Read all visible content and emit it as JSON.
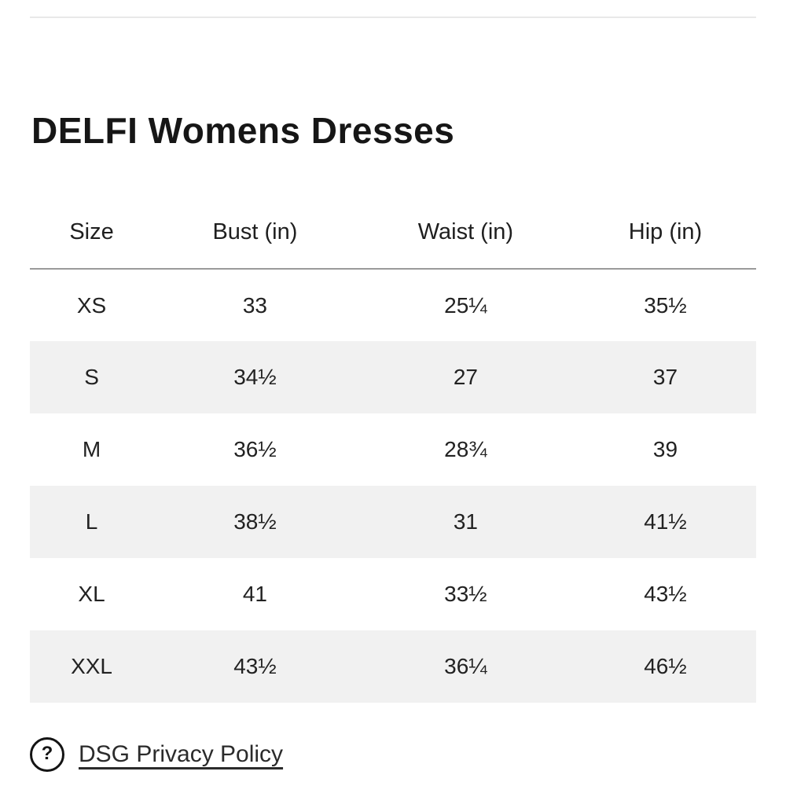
{
  "title": "DELFI Womens Dresses",
  "size_chart": {
    "columns": [
      "Size",
      "Bust (in)",
      "Waist (in)",
      "Hip (in)"
    ],
    "rows": [
      {
        "size": "XS",
        "bust": "33",
        "waist": "25¼",
        "hip": "35½"
      },
      {
        "size": "S",
        "bust": "34½",
        "waist": "27",
        "hip": "37"
      },
      {
        "size": "M",
        "bust": "36½",
        "waist": "28¾",
        "hip": "39"
      },
      {
        "size": "L",
        "bust": "38½",
        "waist": "31",
        "hip": "41½"
      },
      {
        "size": "XL",
        "bust": "41",
        "waist": "33½",
        "hip": "43½"
      },
      {
        "size": "XXL",
        "bust": "43½",
        "waist": "36¼",
        "hip": "46½"
      }
    ]
  },
  "footer": {
    "help_icon_glyph": "?",
    "privacy_link_label": "DSG Privacy Policy"
  },
  "colors": {
    "stripe_row": "#f1f1f1",
    "header_separator": "#9a9a9a",
    "top_divider": "#e8e8e8",
    "text": "#1f1f1f"
  }
}
